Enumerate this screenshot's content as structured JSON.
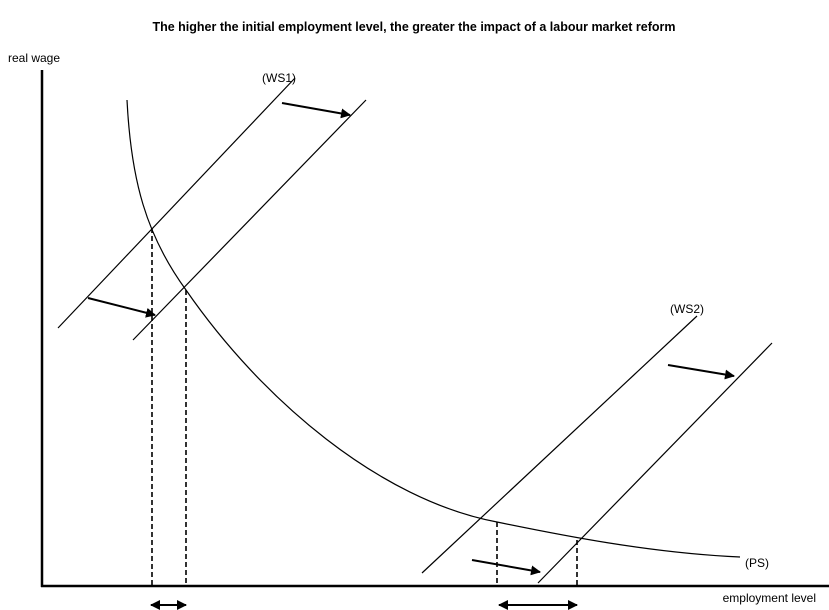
{
  "title": "The higher the initial employment level, the greater the impact of a labour market reform",
  "y_axis_label": "real wage",
  "x_axis_label": "employment level",
  "curves": {
    "ws1": "(WS1)",
    "ws2": "(WS2)",
    "ps": "(PS)"
  }
}
